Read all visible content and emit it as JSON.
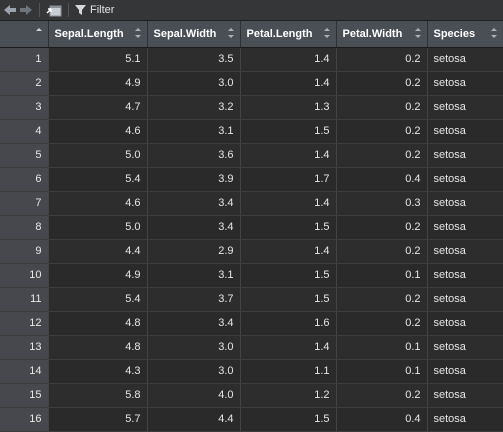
{
  "toolbar": {
    "back_icon": "back-arrow-icon",
    "forward_icon": "forward-arrow-icon",
    "popout_icon": "popout-window-icon",
    "filter_icon": "filter-funnel-icon",
    "filter_label": "Filter"
  },
  "table": {
    "columns": [
      "",
      "Sepal.Length",
      "Sepal.Width",
      "Petal.Length",
      "Petal.Width",
      "Species"
    ],
    "rows": [
      [
        "1",
        "5.1",
        "3.5",
        "1.4",
        "0.2",
        "setosa"
      ],
      [
        "2",
        "4.9",
        "3.0",
        "1.4",
        "0.2",
        "setosa"
      ],
      [
        "3",
        "4.7",
        "3.2",
        "1.3",
        "0.2",
        "setosa"
      ],
      [
        "4",
        "4.6",
        "3.1",
        "1.5",
        "0.2",
        "setosa"
      ],
      [
        "5",
        "5.0",
        "3.6",
        "1.4",
        "0.2",
        "setosa"
      ],
      [
        "6",
        "5.4",
        "3.9",
        "1.7",
        "0.4",
        "setosa"
      ],
      [
        "7",
        "4.6",
        "3.4",
        "1.4",
        "0.3",
        "setosa"
      ],
      [
        "8",
        "5.0",
        "3.4",
        "1.5",
        "0.2",
        "setosa"
      ],
      [
        "9",
        "4.4",
        "2.9",
        "1.4",
        "0.2",
        "setosa"
      ],
      [
        "10",
        "4.9",
        "3.1",
        "1.5",
        "0.1",
        "setosa"
      ],
      [
        "11",
        "5.4",
        "3.7",
        "1.5",
        "0.2",
        "setosa"
      ],
      [
        "12",
        "4.8",
        "3.4",
        "1.6",
        "0.2",
        "setosa"
      ],
      [
        "13",
        "4.8",
        "3.0",
        "1.4",
        "0.1",
        "setosa"
      ],
      [
        "14",
        "4.3",
        "3.0",
        "1.1",
        "0.1",
        "setosa"
      ],
      [
        "15",
        "5.8",
        "4.0",
        "1.2",
        "0.2",
        "setosa"
      ],
      [
        "16",
        "5.7",
        "4.4",
        "1.5",
        "0.4",
        "setosa"
      ]
    ]
  },
  "colors": {
    "background": "#2b2b2b",
    "header": "#4a4f56",
    "rownum": "#46484d",
    "text": "#e6e6e6"
  }
}
